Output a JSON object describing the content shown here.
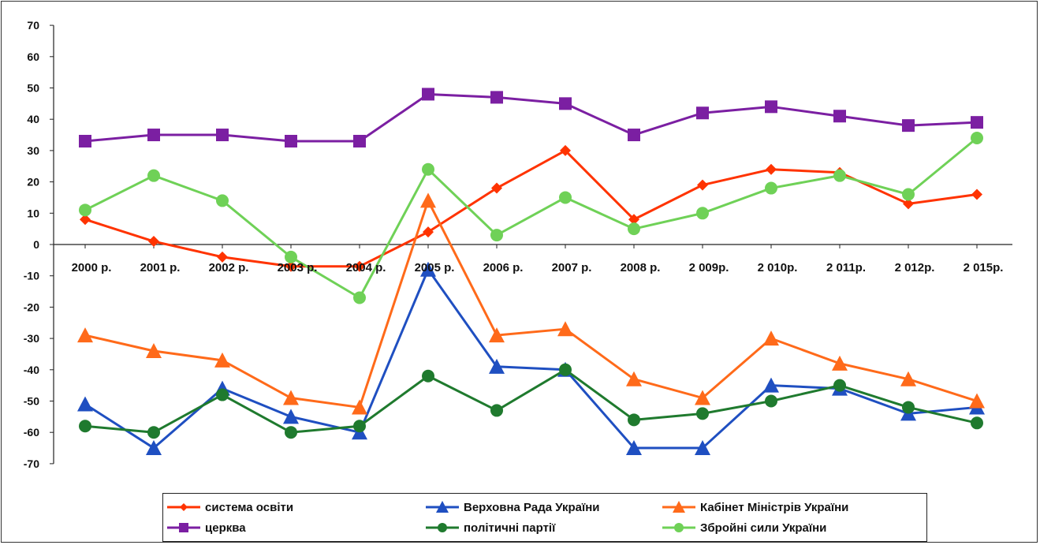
{
  "chart_data": {
    "type": "line",
    "categories": [
      "2000 р.",
      "2001 р.",
      "2002 р.",
      "2003 р.",
      "2004 р.",
      "2005 р.",
      "2006 р.",
      "2007 р.",
      "2008 р.",
      "2 009р.",
      "2 010р.",
      "2 011р.",
      "2 012р.",
      "2 015р."
    ],
    "ylim": [
      -70,
      70
    ],
    "yticks": [
      70,
      60,
      50,
      40,
      30,
      20,
      10,
      0,
      -10,
      -20,
      -30,
      -40,
      -50,
      -60,
      -70
    ],
    "grid": false,
    "legend_position": "bottom",
    "series": [
      {
        "name": "система освіти",
        "color": "#ff3300",
        "marker": "diamond",
        "values": [
          8,
          1,
          -4,
          -7,
          -7,
          4,
          18,
          30,
          8,
          19,
          24,
          23,
          13,
          16
        ]
      },
      {
        "name": "Верховна Рада України",
        "color": "#1f4fc1",
        "marker": "triangle",
        "values": [
          -51,
          -65,
          -46,
          -55,
          -60,
          -8,
          -39,
          -40,
          -65,
          -65,
          -45,
          -46,
          -54,
          -52
        ]
      },
      {
        "name": "Кабінет Міністрів України",
        "color": "#ff6a1a",
        "marker": "triangle",
        "values": [
          -29,
          -34,
          -37,
          -49,
          -52,
          14,
          -29,
          -27,
          -43,
          -49,
          -30,
          -38,
          -43,
          -50
        ]
      },
      {
        "name": "церква",
        "color": "#7b1fa2",
        "marker": "square",
        "values": [
          33,
          35,
          35,
          33,
          33,
          48,
          47,
          45,
          35,
          42,
          44,
          41,
          38,
          39
        ]
      },
      {
        "name": "політичні партії",
        "color": "#1f7a2e",
        "marker": "circle",
        "values": [
          -58,
          -60,
          -48,
          -60,
          -58,
          -42,
          -53,
          -40,
          -56,
          -54,
          -50,
          -45,
          -52,
          -57
        ]
      },
      {
        "name": "Збройні сили України",
        "color": "#6fd157",
        "marker": "circle",
        "values": [
          11,
          22,
          14,
          -4,
          -17,
          24,
          3,
          15,
          5,
          10,
          18,
          22,
          16,
          34
        ]
      }
    ]
  }
}
